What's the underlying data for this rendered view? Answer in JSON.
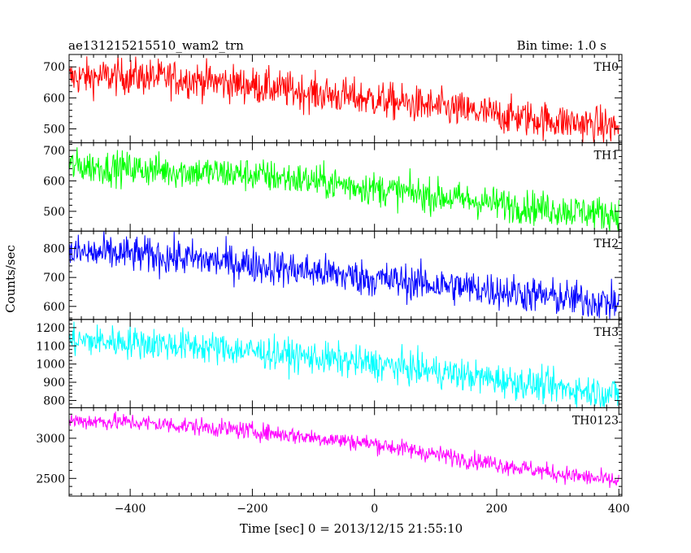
{
  "header": {
    "title": "ae131215215510_wam2_trn",
    "bin_time": "Bin time: 1.0 s"
  },
  "chart_data": {
    "type": "line",
    "title": "ae131215215510_wam2_trn",
    "subtitle": "Bin time: 1.0 s",
    "xlabel": "Time [sec] 0 = 2013/12/15 21:55:10",
    "ylabel": "Counts/sec",
    "xlim": [
      -500,
      405
    ],
    "x_ticks": [
      -400,
      -200,
      0,
      200,
      400
    ],
    "grid": false,
    "panels": [
      {
        "name": "TH0",
        "color": "#ff0000",
        "ylim": [
          455,
          740
        ],
        "y_ticks": [
          500,
          600,
          700
        ],
        "trend": {
          "x": [
            -500,
            -400,
            -300,
            -200,
            -100,
            0,
            100,
            200,
            300,
            400
          ],
          "y": [
            665,
            670,
            660,
            640,
            615,
            595,
            570,
            545,
            525,
            505
          ]
        },
        "noise": 30
      },
      {
        "name": "TH1",
        "color": "#00ff00",
        "ylim": [
          435,
          725
        ],
        "y_ticks": [
          500,
          600,
          700
        ],
        "trend": {
          "x": [
            -500,
            -400,
            -300,
            -200,
            -100,
            0,
            100,
            200,
            300,
            400
          ],
          "y": [
            650,
            640,
            630,
            620,
            600,
            575,
            550,
            525,
            505,
            490
          ]
        },
        "noise": 28
      },
      {
        "name": "TH2",
        "color": "#0000ff",
        "ylim": [
          555,
          860
        ],
        "y_ticks": [
          600,
          700,
          800
        ],
        "trend": {
          "x": [
            -500,
            -400,
            -300,
            -200,
            -100,
            0,
            100,
            200,
            300,
            400
          ],
          "y": [
            785,
            780,
            765,
            745,
            720,
            695,
            675,
            655,
            630,
            610
          ]
        },
        "noise": 32
      },
      {
        "name": "TH3",
        "color": "#00ffff",
        "ylim": [
          760,
          1245
        ],
        "y_ticks": [
          800,
          900,
          1000,
          1100,
          1200
        ],
        "trend": {
          "x": [
            -500,
            -400,
            -300,
            -200,
            -100,
            0,
            100,
            200,
            300,
            400
          ],
          "y": [
            1130,
            1120,
            1100,
            1070,
            1035,
            1000,
            960,
            915,
            870,
            835
          ]
        },
        "noise": 45
      },
      {
        "name": "TH0123",
        "color": "#ff00ff",
        "ylim": [
          2280,
          3380
        ],
        "y_ticks": [
          2500,
          3000
        ],
        "trend": {
          "x": [
            -500,
            -400,
            -300,
            -200,
            -100,
            0,
            100,
            200,
            300,
            400
          ],
          "y": [
            3220,
            3200,
            3150,
            3090,
            3010,
            2930,
            2800,
            2680,
            2560,
            2460
          ]
        },
        "noise": 55
      }
    ]
  }
}
